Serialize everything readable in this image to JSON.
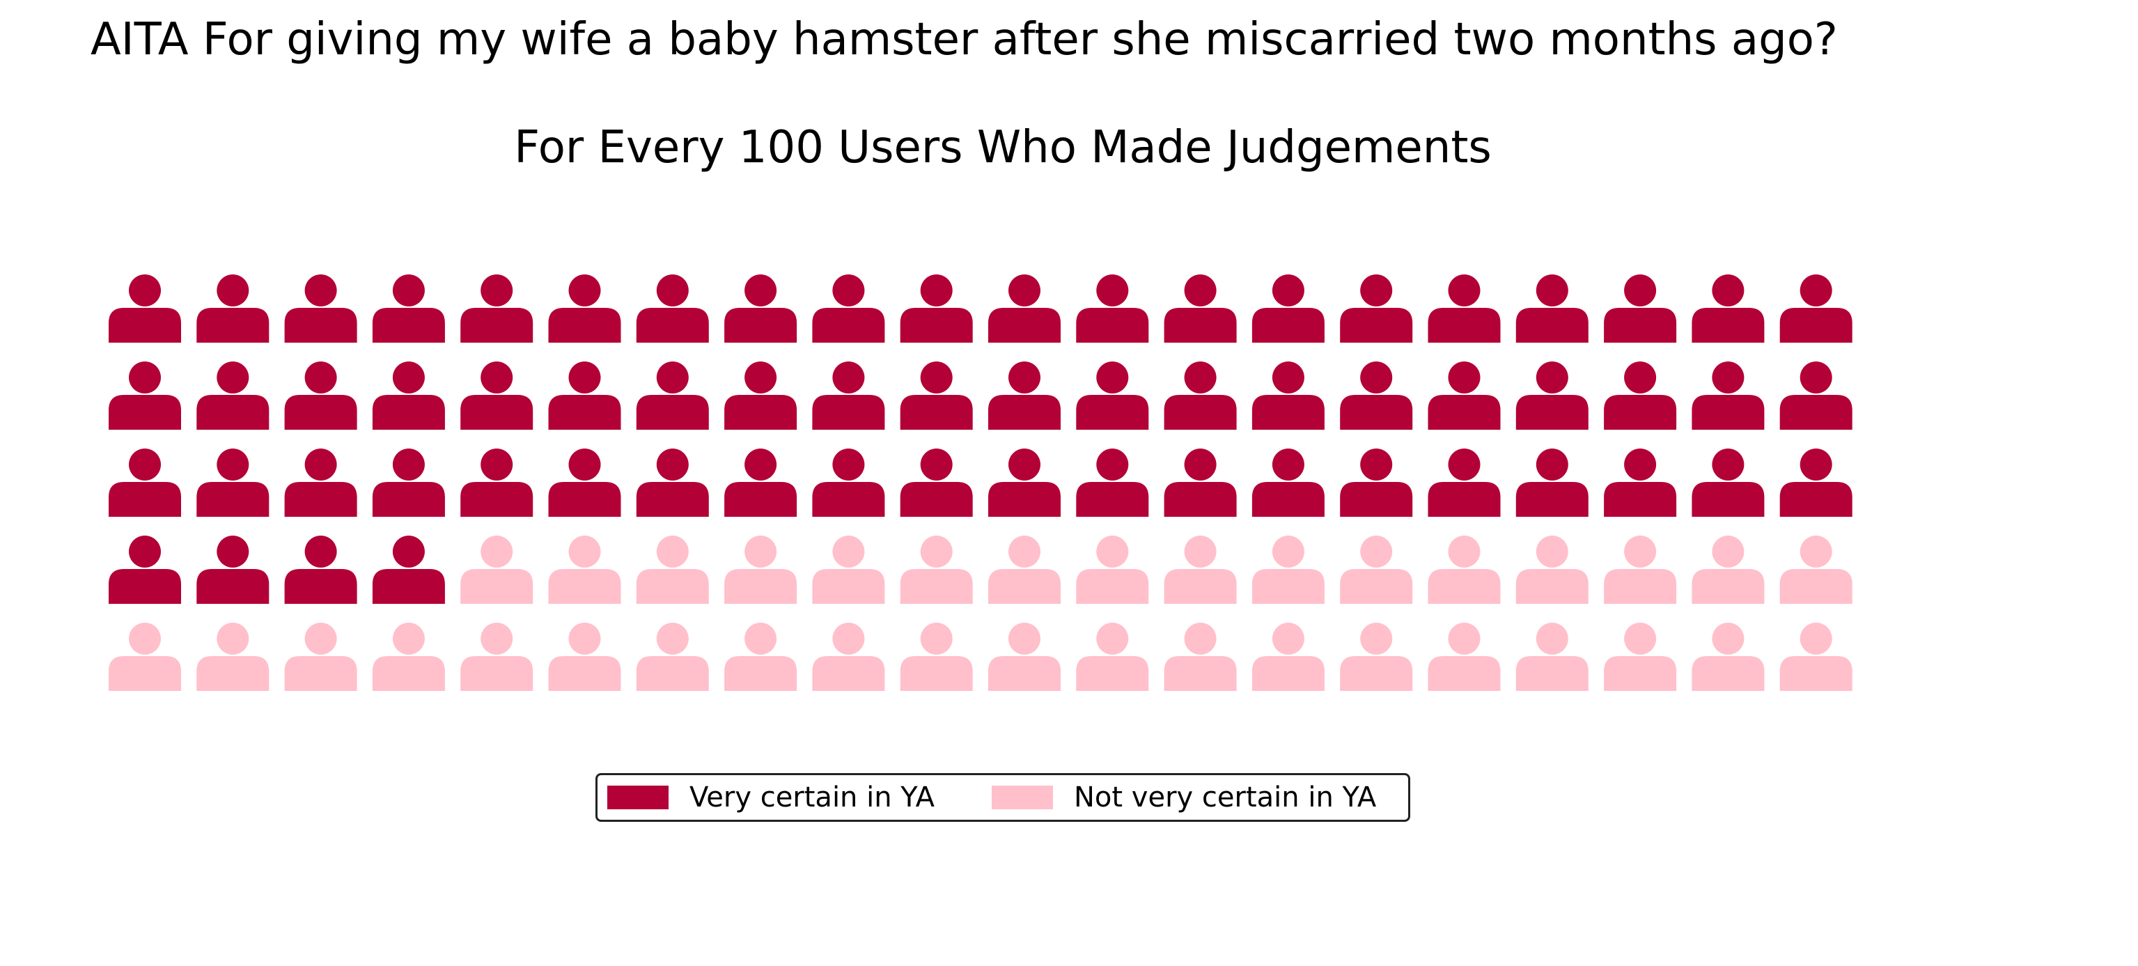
{
  "chart_data": {
    "type": "waffle",
    "title": "AITA For giving my wife a baby hamster after she miscarried two months ago?",
    "subtitle": "For Every 100 Users Who Made Judgements",
    "rows": 5,
    "columns": 20,
    "icon": "person-icon",
    "series": [
      {
        "name": "Very certain in YA",
        "value": 64,
        "color": "#b30036"
      },
      {
        "name": "Not very certain in YA",
        "value": 36,
        "color": "#ffc0cb"
      }
    ],
    "legend_position": "bottom-center"
  }
}
